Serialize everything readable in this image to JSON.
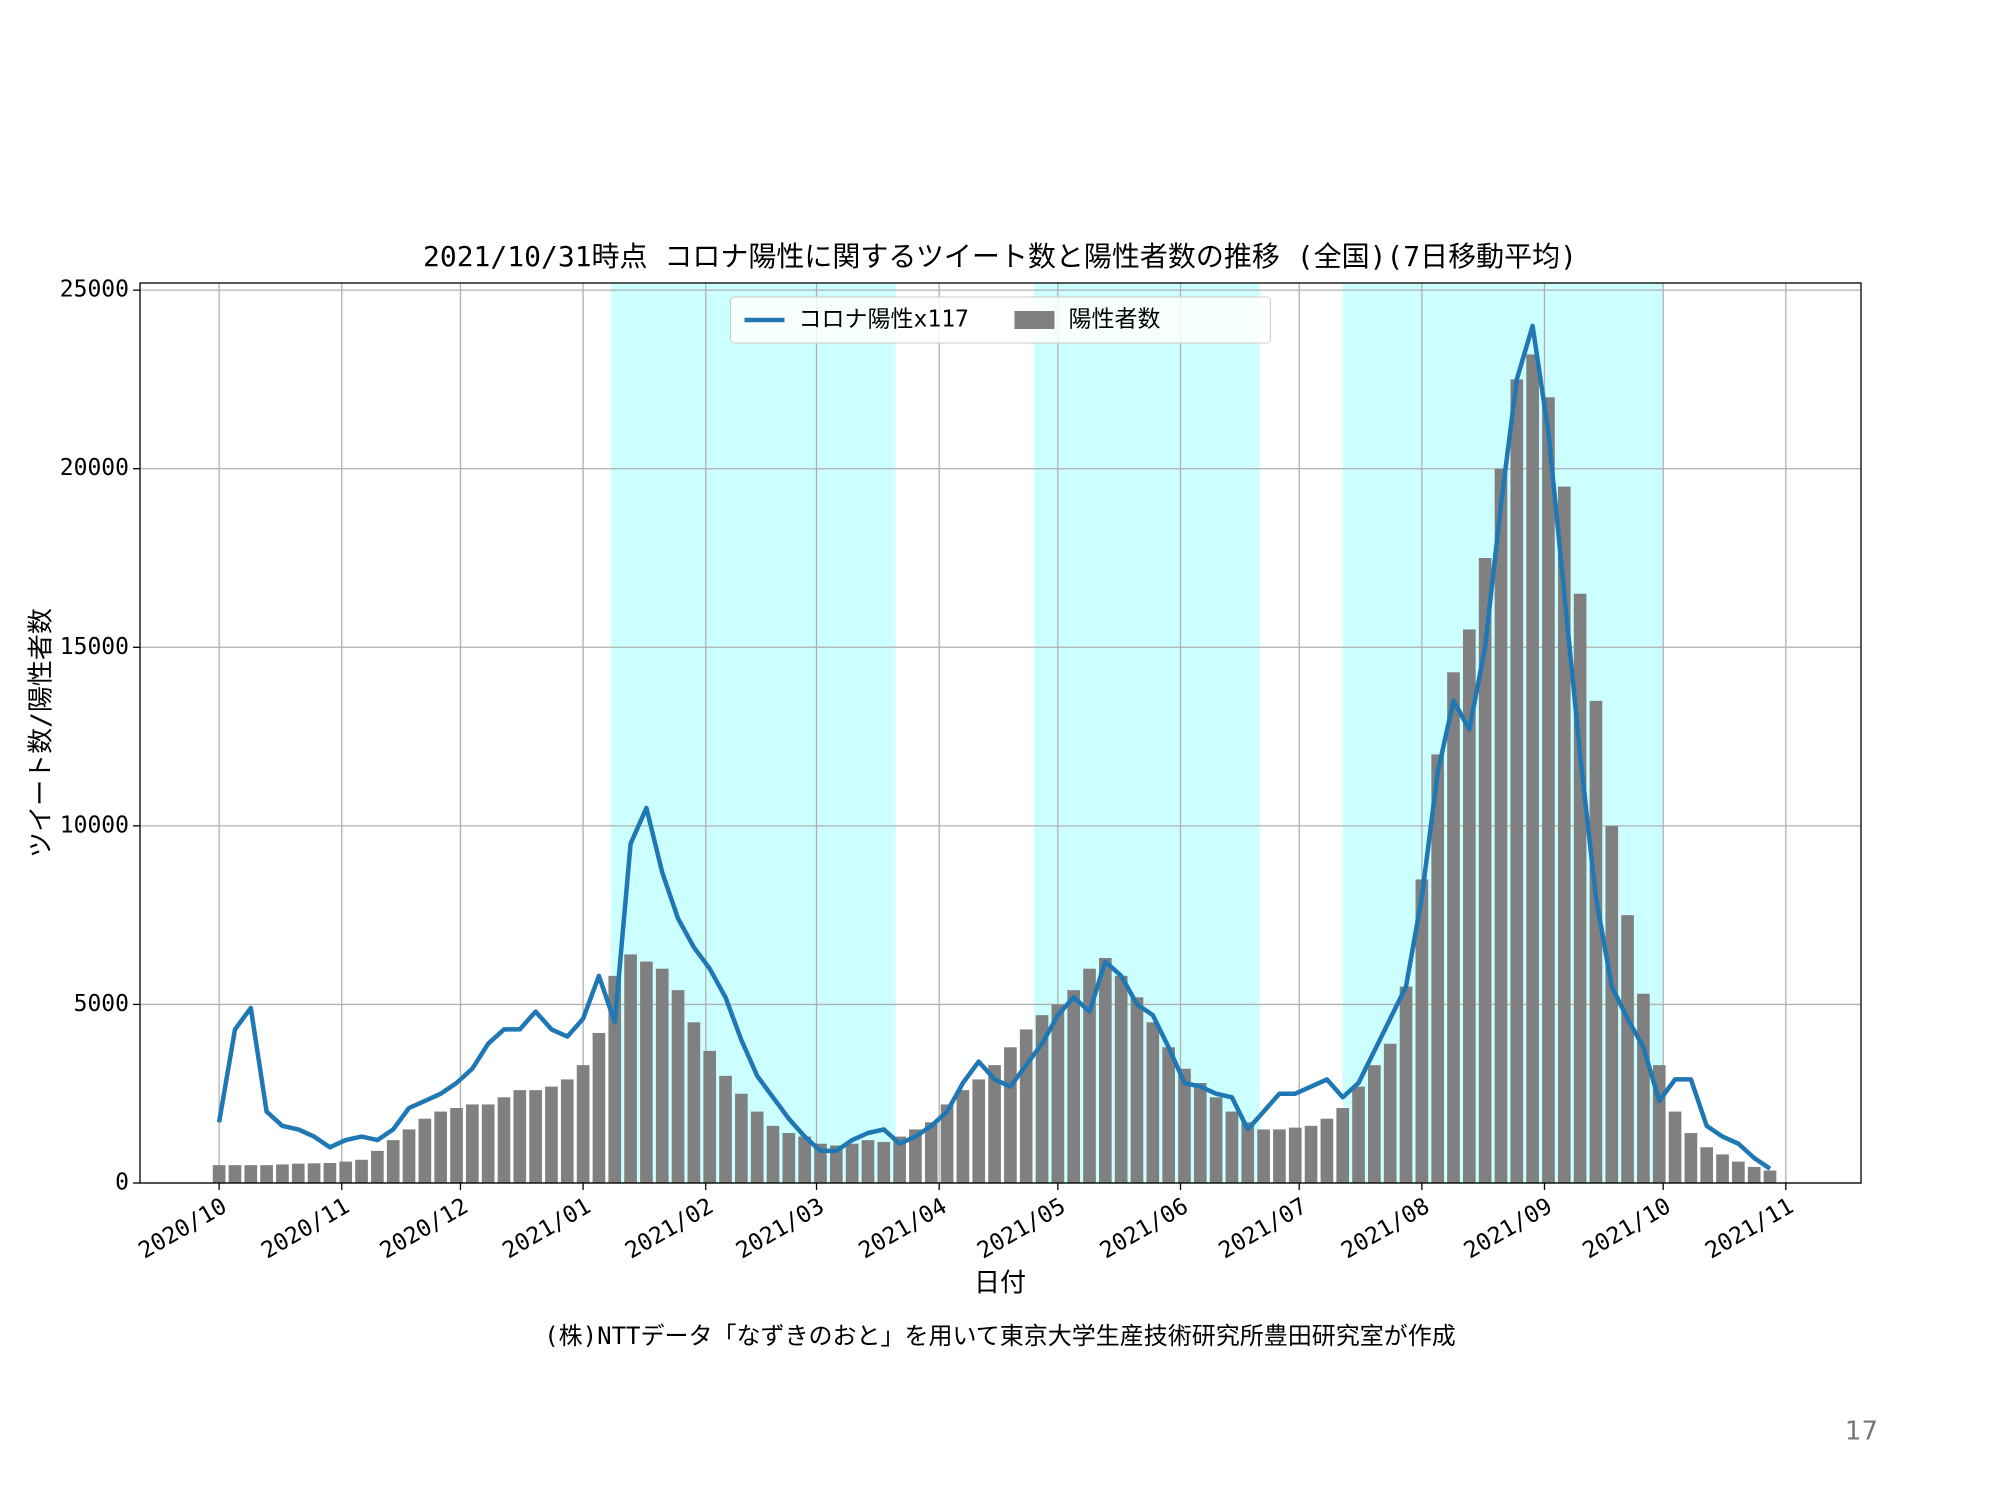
{
  "chart_data": {
    "type": "combo",
    "title": "2021/10/31時点 コロナ陽性に関するツイート数と陽性者数の推移 (全国)(7日移動平均)",
    "xlabel": "日付",
    "ylabel": "ツイート数/陽性者数",
    "caption": "(株)NTTデータ「なずきのおと」を用いて東京大学生産技術研究所豊田研究室が作成",
    "x": [
      0,
      4,
      8,
      12,
      16,
      20,
      24,
      28,
      32,
      36,
      40,
      44,
      48,
      52,
      56,
      60,
      64,
      68,
      72,
      76,
      80,
      84,
      88,
      92,
      96,
      100,
      104,
      108,
      112,
      116,
      120,
      124,
      128,
      132,
      136,
      140,
      144,
      148,
      152,
      156,
      160,
      164,
      168,
      172,
      176,
      180,
      184,
      188,
      192,
      196,
      200,
      204,
      208,
      212,
      216,
      220,
      224,
      228,
      232,
      236,
      240,
      244,
      248,
      252,
      256,
      260,
      264,
      268,
      272,
      276,
      280,
      284,
      288,
      292,
      296,
      300,
      304,
      308,
      312,
      316,
      320,
      324,
      328,
      332,
      336,
      340,
      344,
      348,
      352,
      356,
      360,
      364,
      368,
      372,
      376,
      380,
      384,
      388,
      392
    ],
    "series": [
      {
        "name": "コロナ陽性x117",
        "type": "line",
        "color": "#1f77b4",
        "values": [
          1700,
          4300,
          4900,
          2000,
          1600,
          1500,
          1300,
          1000,
          1200,
          1300,
          1200,
          1500,
          2100,
          2300,
          2500,
          2800,
          3200,
          3900,
          4300,
          4300,
          4800,
          4300,
          4100,
          4600,
          5800,
          4500,
          9500,
          10500,
          8700,
          7400,
          6600,
          6000,
          5200,
          4000,
          3000,
          2400,
          1800,
          1300,
          900,
          900,
          1200,
          1400,
          1500,
          1100,
          1300,
          1600,
          2000,
          2800,
          3400,
          2900,
          2700,
          3300,
          3900,
          4700,
          5200,
          4800,
          6200,
          5800,
          5000,
          4700,
          3800,
          2800,
          2700,
          2500,
          2400,
          1500,
          2000,
          2500,
          2500,
          2700,
          2900,
          2400,
          2800,
          3700,
          4600,
          5500,
          8000,
          11500,
          13500,
          12700,
          15000,
          19000,
          22500,
          24000,
          21000,
          16500,
          12000,
          8000,
          5500,
          4600,
          3800,
          2300,
          2900,
          2900,
          1600,
          1300,
          1100,
          700,
          400
        ]
      },
      {
        "name": "陽性者数",
        "type": "bar",
        "color": "#808080",
        "values": [
          500,
          500,
          500,
          500,
          520,
          540,
          550,
          560,
          600,
          650,
          900,
          1200,
          1500,
          1800,
          2000,
          2100,
          2200,
          2200,
          2400,
          2600,
          2600,
          2700,
          2900,
          3300,
          4200,
          5800,
          6400,
          6200,
          6000,
          5400,
          4500,
          3700,
          3000,
          2500,
          2000,
          1600,
          1400,
          1300,
          1100,
          1050,
          1100,
          1200,
          1150,
          1300,
          1500,
          1700,
          2200,
          2600,
          2900,
          3300,
          3800,
          4300,
          4700,
          5000,
          5400,
          6000,
          6300,
          5800,
          5200,
          4500,
          3800,
          3200,
          2800,
          2400,
          2000,
          1700,
          1500,
          1500,
          1550,
          1600,
          1800,
          2100,
          2700,
          3300,
          3900,
          5500,
          8500,
          12000,
          14300,
          15500,
          17500,
          20000,
          22500,
          23200,
          22000,
          19500,
          16500,
          13500,
          10000,
          7500,
          5300,
          3300,
          2000,
          1400,
          1000,
          800,
          600,
          450,
          350
        ]
      }
    ],
    "shaded_spans": [
      [
        99,
        171
      ],
      [
        206,
        263
      ],
      [
        284,
        365
      ]
    ],
    "span_color": "#ccffff",
    "xlim": [
      -20,
      415
    ],
    "ylim": [
      0,
      25200
    ],
    "yticks": [
      0,
      5000,
      10000,
      15000,
      20000,
      25000
    ],
    "xticks": [
      {
        "value": 0,
        "label": "2020/10"
      },
      {
        "value": 31,
        "label": "2020/11"
      },
      {
        "value": 61,
        "label": "2020/12"
      },
      {
        "value": 92,
        "label": "2021/01"
      },
      {
        "value": 123,
        "label": "2021/02"
      },
      {
        "value": 151,
        "label": "2021/03"
      },
      {
        "value": 182,
        "label": "2021/04"
      },
      {
        "value": 212,
        "label": "2021/05"
      },
      {
        "value": 243,
        "label": "2021/06"
      },
      {
        "value": 273,
        "label": "2021/07"
      },
      {
        "value": 304,
        "label": "2021/08"
      },
      {
        "value": 335,
        "label": "2021/09"
      },
      {
        "value": 365,
        "label": "2021/10"
      },
      {
        "value": 396,
        "label": "2021/11"
      }
    ],
    "grid": true,
    "legend": "upper center"
  },
  "page_number": "17"
}
